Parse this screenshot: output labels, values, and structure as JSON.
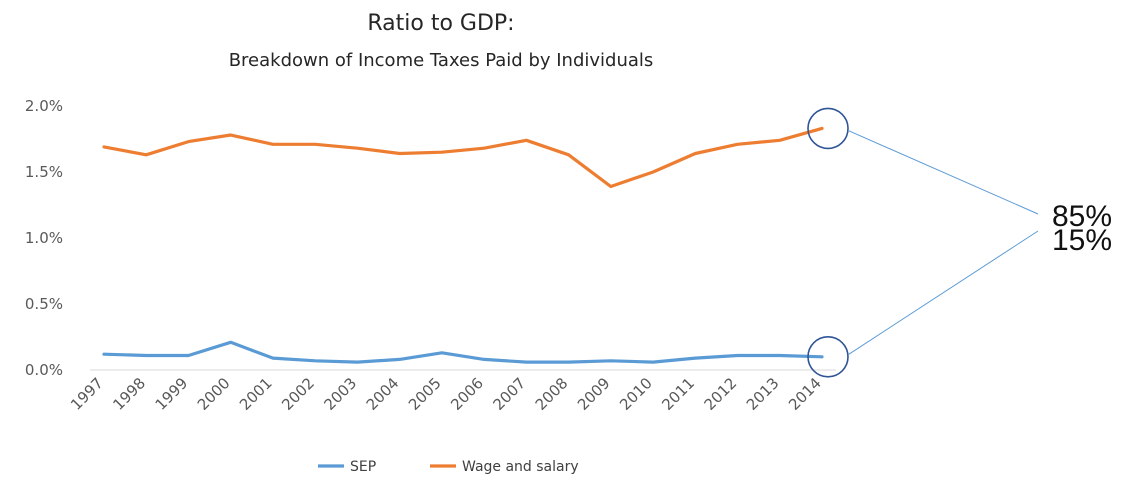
{
  "chart_data": {
    "type": "line",
    "title": "Ratio to GDP:",
    "subtitle": "Breakdown of Income Taxes Paid by Individuals",
    "xlabel": "",
    "ylabel": "",
    "categories": [
      "1997",
      "1998",
      "1999",
      "2000",
      "2001",
      "2002",
      "2003",
      "2004",
      "2005",
      "2006",
      "2007",
      "2008",
      "2009",
      "2010",
      "2011",
      "2012",
      "2013",
      "2014"
    ],
    "yticks": [
      "0.0%",
      "0.5%",
      "1.0%",
      "1.5%",
      "2.0%"
    ],
    "ylim": [
      0,
      2.0
    ],
    "grid": false,
    "legend_position": "bottom",
    "series": [
      {
        "name": "SEP",
        "color": "#5b9bd5",
        "values": [
          0.12,
          0.11,
          0.11,
          0.21,
          0.09,
          0.07,
          0.06,
          0.08,
          0.13,
          0.08,
          0.06,
          0.06,
          0.07,
          0.06,
          0.09,
          0.11,
          0.11,
          0.1
        ]
      },
      {
        "name": "Wage and salary",
        "color": "#ed7d31",
        "values": [
          1.69,
          1.63,
          1.73,
          1.78,
          1.71,
          1.71,
          1.68,
          1.64,
          1.65,
          1.68,
          1.74,
          1.63,
          1.39,
          1.5,
          1.64,
          1.71,
          1.74,
          1.83
        ]
      }
    ],
    "annotations": [
      {
        "series": "Wage and salary",
        "category": "2014",
        "label": "85%"
      },
      {
        "series": "SEP",
        "category": "2014",
        "label": "15%"
      }
    ]
  }
}
